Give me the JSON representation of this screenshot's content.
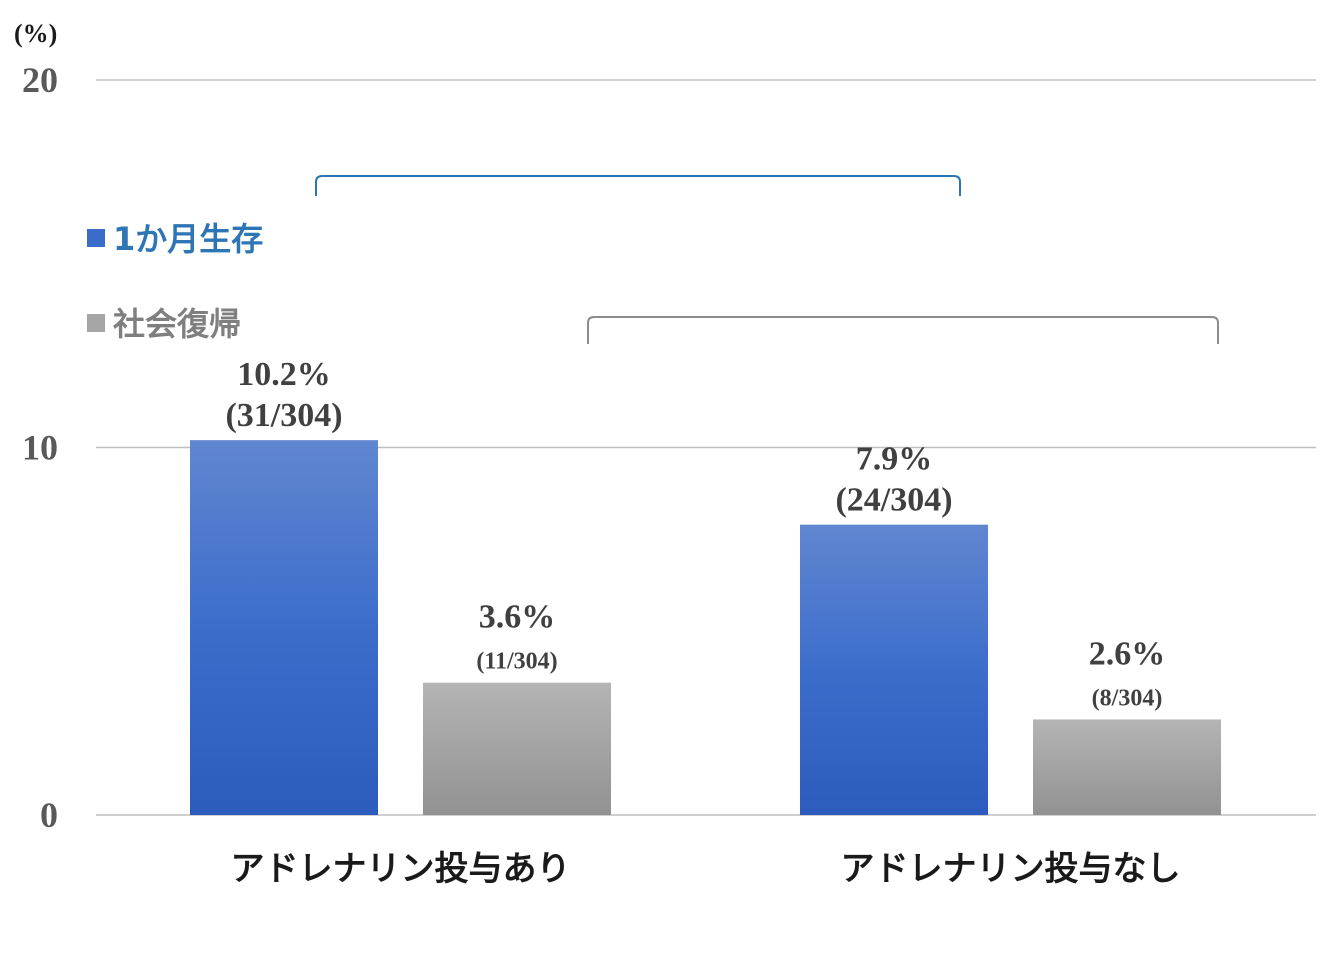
{
  "chart_data": {
    "type": "bar",
    "yunit": "(%)",
    "ylim": [
      0,
      20
    ],
    "yticks": [
      "0",
      "10",
      "20"
    ],
    "grid": true,
    "legend_position": "left",
    "categories": [
      "アドレナリン投与あり",
      "アドレナリン投与なし"
    ],
    "series": [
      {
        "name": "1か月生存",
        "color": "#3a6cc9",
        "values": [
          10.2,
          7.9
        ],
        "labels": [
          "10.2%",
          "7.9%"
        ],
        "counts": [
          "(31/304)",
          "(24/304)"
        ]
      },
      {
        "name": "社会復帰",
        "color": "#a6a6a6",
        "values": [
          3.6,
          2.6
        ],
        "labels": [
          "3.6%",
          "2.6%"
        ],
        "counts": [
          "(11/304)",
          "(8/304)"
        ]
      }
    ],
    "legend_colors": {
      "1か月生存": "#2e75b6",
      "社会復帰": "#808080"
    }
  }
}
